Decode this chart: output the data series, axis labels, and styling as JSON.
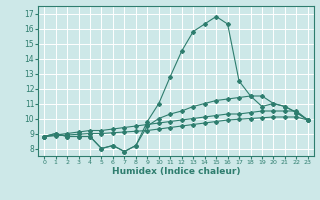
{
  "title": "",
  "xlabel": "Humidex (Indice chaleur)",
  "ylabel": "",
  "bg_color": "#cde8e8",
  "grid_color": "#ffffff",
  "line_color": "#2e7d6e",
  "xlim": [
    -0.5,
    23.5
  ],
  "ylim": [
    7.5,
    17.5
  ],
  "xticks": [
    0,
    1,
    2,
    3,
    4,
    5,
    6,
    7,
    8,
    9,
    10,
    11,
    12,
    13,
    14,
    15,
    16,
    17,
    18,
    19,
    20,
    21,
    22,
    23
  ],
  "yticks": [
    8,
    9,
    10,
    11,
    12,
    13,
    14,
    15,
    16,
    17
  ],
  "series": [
    [
      8.8,
      9.0,
      8.8,
      8.8,
      8.8,
      8.0,
      8.2,
      7.8,
      8.2,
      9.8,
      11.0,
      12.8,
      14.5,
      15.8,
      16.3,
      16.8,
      16.3,
      12.5,
      11.5,
      10.8,
      11.0,
      10.8,
      10.4,
      9.9
    ],
    [
      8.8,
      9.0,
      8.8,
      8.8,
      8.8,
      8.0,
      8.2,
      7.8,
      8.2,
      9.5,
      10.0,
      10.3,
      10.5,
      10.8,
      11.0,
      11.2,
      11.3,
      11.4,
      11.5,
      11.5,
      11.0,
      10.8,
      10.4,
      9.9
    ],
    [
      8.8,
      8.9,
      9.0,
      9.1,
      9.2,
      9.2,
      9.3,
      9.4,
      9.5,
      9.6,
      9.7,
      9.8,
      9.9,
      10.0,
      10.1,
      10.2,
      10.3,
      10.3,
      10.4,
      10.5,
      10.5,
      10.5,
      10.5,
      9.9
    ],
    [
      8.8,
      8.85,
      8.9,
      8.95,
      9.0,
      9.0,
      9.05,
      9.1,
      9.15,
      9.2,
      9.3,
      9.4,
      9.5,
      9.6,
      9.7,
      9.8,
      9.9,
      9.95,
      10.0,
      10.05,
      10.1,
      10.1,
      10.1,
      9.9
    ]
  ]
}
